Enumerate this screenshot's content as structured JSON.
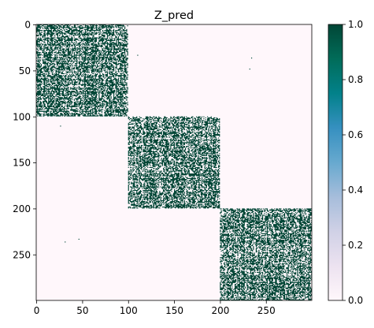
{
  "chart_data": {
    "type": "heatmap",
    "title": "Z_pred",
    "n_rows": 300,
    "n_cols": 300,
    "x_ticks": [
      0,
      50,
      100,
      150,
      200,
      250
    ],
    "y_ticks": [
      0,
      50,
      100,
      150,
      200,
      250
    ],
    "xlim": [
      0,
      300
    ],
    "ylim": [
      300,
      0
    ],
    "blocks": [
      {
        "rows": [
          0,
          100
        ],
        "cols": [
          0,
          100
        ],
        "fill_density": 0.8
      },
      {
        "rows": [
          100,
          200
        ],
        "cols": [
          100,
          200
        ],
        "fill_density": 0.75
      },
      {
        "rows": [
          200,
          300
        ],
        "cols": [
          200,
          300
        ],
        "fill_density": 0.75
      }
    ],
    "off_block_points": [
      [
        110,
        33
      ],
      [
        234,
        36
      ],
      [
        26,
        110
      ],
      [
        232,
        48
      ],
      [
        31,
        236
      ],
      [
        46,
        233
      ]
    ],
    "colorbar": {
      "min": 0.0,
      "max": 1.0,
      "ticks": [
        "0.0",
        "0.2",
        "0.4",
        "0.6",
        "0.8",
        "1.0"
      ],
      "colormap": "PuBuGn",
      "stops": [
        "#fff7fb",
        "#ece2f0",
        "#d0d1e6",
        "#a6bddb",
        "#67a9cf",
        "#3690c0",
        "#02818a",
        "#016c59",
        "#014636"
      ]
    }
  }
}
